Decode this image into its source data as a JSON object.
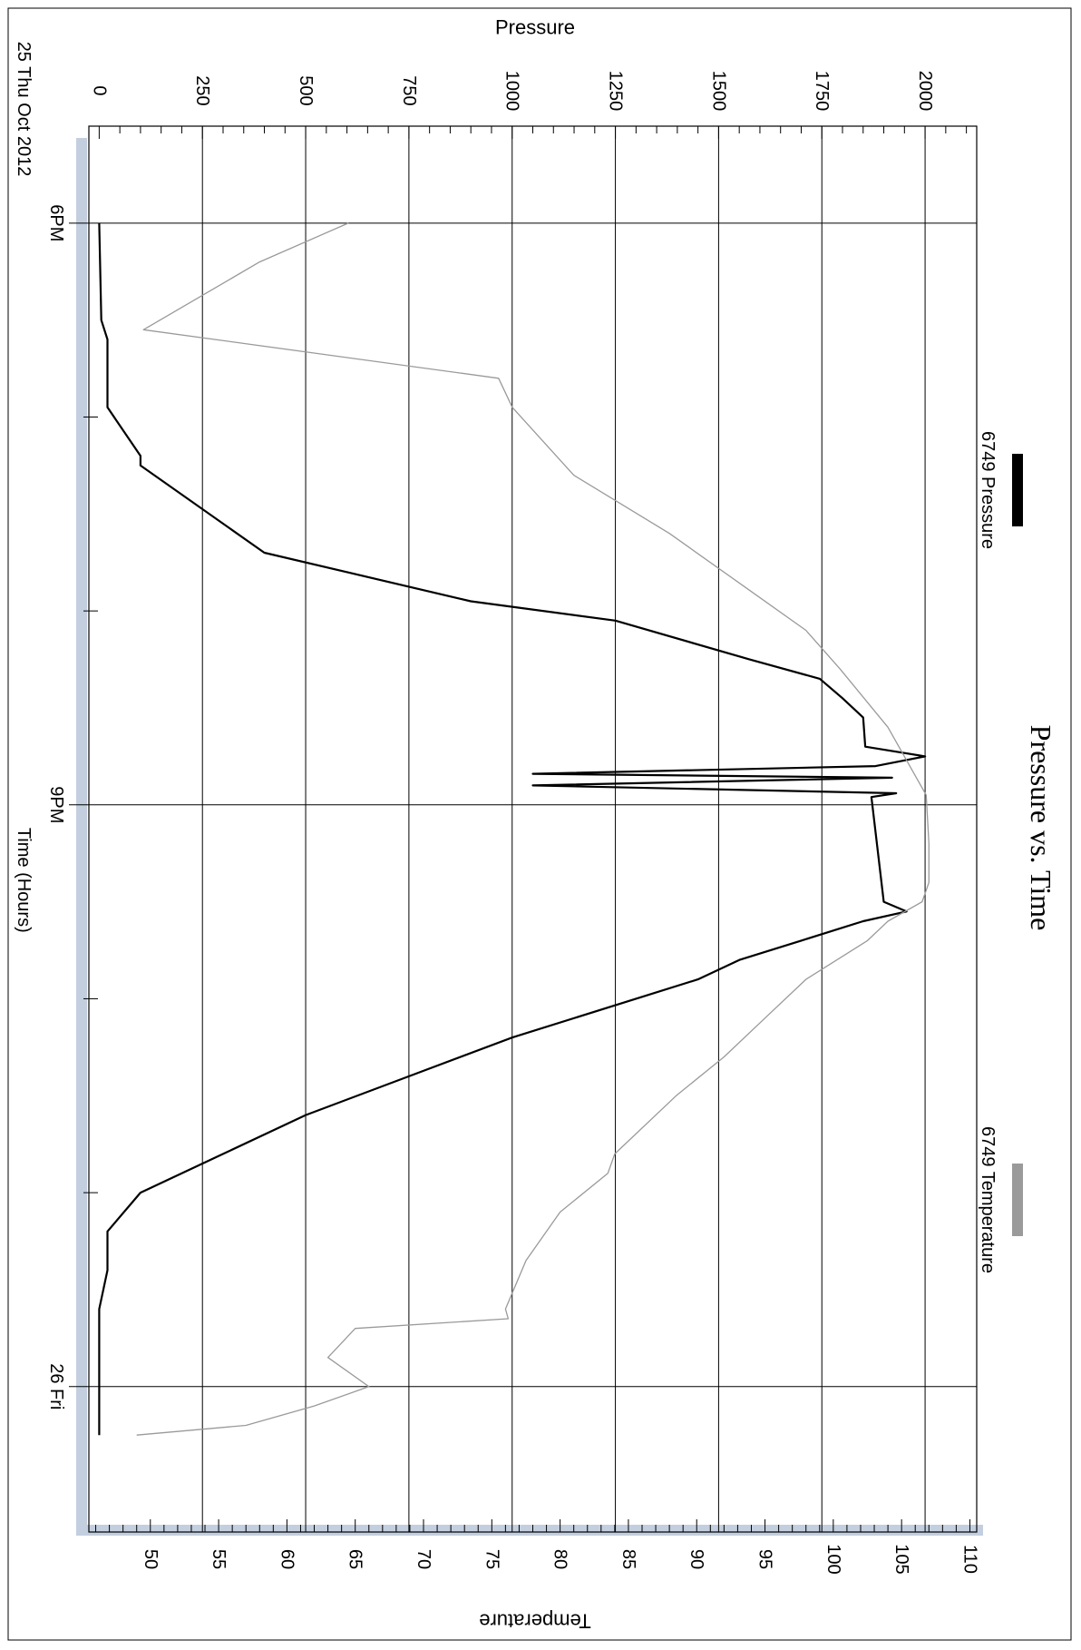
{
  "chart_data": {
    "type": "line",
    "title": "Pressure vs. Time",
    "xlabel": "Time (Hours)",
    "ylabel": "Pressure",
    "ylabel_right": "Temperature",
    "orientation": "rotated-90-clockwise",
    "x_unit": "hours",
    "x_range": [
      17.5,
      24.75
    ],
    "date_label": "25 Thu Oct 2012",
    "x_major_ticks": [
      {
        "value": 18,
        "label": "6PM"
      },
      {
        "value": 21,
        "label": "9PM"
      },
      {
        "value": 24,
        "label": "26 Fri"
      }
    ],
    "x_minor_ticks": [
      19,
      20,
      22,
      23
    ],
    "ylim": [
      -25,
      2125
    ],
    "y_ticks": [
      0,
      250,
      500,
      750,
      1000,
      1250,
      1500,
      1750,
      2000
    ],
    "y_tick_labels": [
      "0",
      "250",
      "500",
      "750",
      "1000",
      "1250",
      "1500",
      "1750",
      "2000"
    ],
    "ylim_right": [
      45.5,
      110.5
    ],
    "y_ticks_right": [
      50,
      55,
      60,
      65,
      70,
      75,
      80,
      85,
      90,
      95,
      100,
      105,
      110
    ],
    "y_tick_labels_right": [
      "50",
      "55",
      "60",
      "65",
      "70",
      "75",
      "80",
      "85",
      "90",
      "95",
      "100",
      "105",
      "110"
    ],
    "grid": true,
    "legend_position": "top",
    "series": [
      {
        "name": "6749 Pressure",
        "axis": "left",
        "color": "#000000",
        "x": [
          18.0,
          18.5,
          18.6,
          18.95,
          19.2,
          19.25,
          19.7,
          19.95,
          20.05,
          20.25,
          20.35,
          20.45,
          20.55,
          20.7,
          20.75,
          20.8,
          20.84,
          20.86,
          20.9,
          20.94,
          20.96,
          21.5,
          21.55,
          21.6,
          21.7,
          21.8,
          21.9,
          22.0,
          22.2,
          22.4,
          22.6,
          22.8,
          23.0,
          23.2,
          23.4,
          23.6,
          23.65,
          24.0,
          24.25
        ],
        "y": [
          0,
          5,
          20,
          20,
          100,
          100,
          400,
          900,
          1250,
          1575,
          1745,
          1800,
          1850,
          1855,
          2000,
          1880,
          1050,
          1920,
          1050,
          1930,
          1870,
          1900,
          1955,
          1850,
          1700,
          1550,
          1450,
          1300,
          1000,
          750,
          500,
          300,
          100,
          20,
          20,
          0,
          0,
          0,
          0
        ]
      },
      {
        "name": "6749 Temperature",
        "axis": "right",
        "color": "#9a9a9a",
        "x": [
          18.0,
          18.2,
          18.55,
          18.8,
          18.95,
          19.3,
          19.6,
          19.9,
          20.1,
          20.3,
          20.6,
          20.95,
          21.2,
          21.4,
          21.5,
          21.6,
          21.7,
          21.9,
          22.1,
          22.3,
          22.5,
          22.8,
          22.9,
          23.1,
          23.35,
          23.6,
          23.65,
          23.7,
          23.85,
          24.0,
          24.1,
          24.2,
          24.25
        ],
        "y": [
          64.5,
          58.0,
          49.5,
          75.5,
          76.5,
          81.0,
          88.0,
          94.0,
          98.0,
          100.5,
          104.0,
          106.8,
          107.0,
          107.0,
          106.5,
          104.0,
          102.5,
          98.0,
          95.0,
          92.0,
          88.5,
          84.0,
          83.5,
          80.0,
          77.5,
          76.0,
          76.2,
          65.0,
          63.0,
          66.0,
          62.0,
          57.0,
          49.0
        ]
      }
    ]
  }
}
